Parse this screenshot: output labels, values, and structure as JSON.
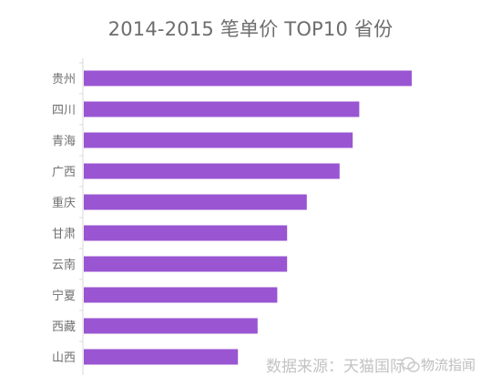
{
  "chart_data": {
    "type": "bar",
    "orientation": "horizontal",
    "title": "2014-2015 笔单价 TOP10 省份",
    "categories": [
      "贵州",
      "四川",
      "青海",
      "广西",
      "重庆",
      "甘肃",
      "云南",
      "宁夏",
      "西藏",
      "山西"
    ],
    "values": [
      100,
      84,
      82,
      78,
      68,
      62,
      62,
      59,
      53,
      47
    ],
    "xlabel": "",
    "ylabel": "",
    "xlim": [
      0,
      100
    ],
    "grid": false,
    "legend": "none",
    "bar_color": "#9a55d2",
    "axis_color": "#d9d9d9"
  },
  "source_note": "数据来源：天猫国际",
  "watermark": {
    "text": "物流指闻",
    "icon": "wechat-logo-icon"
  }
}
